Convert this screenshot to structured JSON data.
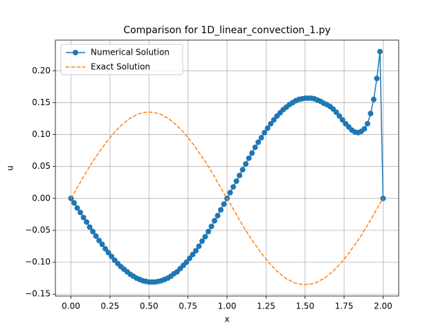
{
  "chart_data": {
    "type": "line",
    "title": "Comparison for 1D_linear_convection_1.py",
    "x_label": "x",
    "y_label": "u",
    "x": [
      0,
      0.02,
      0.04,
      0.06,
      0.08,
      0.1,
      0.12,
      0.14,
      0.16,
      0.18,
      0.2,
      0.22,
      0.24,
      0.26,
      0.28,
      0.3,
      0.32,
      0.34,
      0.36,
      0.38,
      0.4,
      0.42,
      0.44,
      0.46,
      0.48,
      0.5,
      0.52,
      0.54,
      0.56,
      0.58,
      0.6,
      0.62,
      0.64,
      0.66,
      0.68,
      0.7,
      0.72,
      0.74,
      0.76,
      0.78,
      0.8,
      0.82,
      0.84,
      0.86,
      0.88,
      0.9,
      0.92,
      0.94,
      0.96,
      0.98,
      1,
      1.02,
      1.04,
      1.06,
      1.08,
      1.1,
      1.12,
      1.14,
      1.16,
      1.18,
      1.2,
      1.22,
      1.24,
      1.26,
      1.28,
      1.3,
      1.32,
      1.34,
      1.36,
      1.38,
      1.4,
      1.42,
      1.44,
      1.46,
      1.48,
      1.5,
      1.52,
      1.54,
      1.56,
      1.58,
      1.6,
      1.62,
      1.64,
      1.66,
      1.68,
      1.7,
      1.72,
      1.74,
      1.76,
      1.78,
      1.8,
      1.82,
      1.84,
      1.86,
      1.88,
      1.9,
      1.92,
      1.94,
      1.96,
      1.98,
      2
    ],
    "series": [
      {
        "name": "Numerical Solution",
        "color": "#1f77b4",
        "linestyle": "solid",
        "marker": "circle",
        "values": [
          0,
          -0.007,
          -0.015,
          -0.022,
          -0.03,
          -0.037,
          -0.045,
          -0.052,
          -0.059,
          -0.066,
          -0.072,
          -0.079,
          -0.085,
          -0.091,
          -0.097,
          -0.102,
          -0.107,
          -0.111,
          -0.115,
          -0.119,
          -0.122,
          -0.125,
          -0.127,
          -0.129,
          -0.13,
          -0.131,
          -0.131,
          -0.131,
          -0.13,
          -0.129,
          -0.127,
          -0.125,
          -0.122,
          -0.118,
          -0.115,
          -0.11,
          -0.105,
          -0.1,
          -0.094,
          -0.088,
          -0.082,
          -0.075,
          -0.067,
          -0.06,
          -0.052,
          -0.044,
          -0.035,
          -0.027,
          -0.018,
          -0.009,
          0,
          0.009,
          0.018,
          0.027,
          0.036,
          0.045,
          0.054,
          0.063,
          0.071,
          0.08,
          0.088,
          0.095,
          0.103,
          0.11,
          0.117,
          0.123,
          0.129,
          0.134,
          0.139,
          0.143,
          0.147,
          0.15,
          0.153,
          0.155,
          0.156,
          0.157,
          0.157,
          0.157,
          0.156,
          0.154,
          0.152,
          0.149,
          0.147,
          0.144,
          0.14,
          0.135,
          0.129,
          0.123,
          0.117,
          0.112,
          0.107,
          0.104,
          0.103,
          0.105,
          0.109,
          0.117,
          0.133,
          0.155,
          0.188,
          0.23,
          0
        ]
      },
      {
        "name": "Exact Solution",
        "color": "#ff7f0e",
        "linestyle": "dashed",
        "marker": "none",
        "values": [
          0,
          0.008,
          0.017,
          0.025,
          0.034,
          0.042,
          0.05,
          0.058,
          0.065,
          0.072,
          0.079,
          0.086,
          0.092,
          0.098,
          0.104,
          0.109,
          0.114,
          0.118,
          0.122,
          0.126,
          0.128,
          0.131,
          0.133,
          0.134,
          0.135,
          0.135,
          0.135,
          0.134,
          0.133,
          0.131,
          0.128,
          0.126,
          0.122,
          0.118,
          0.114,
          0.109,
          0.104,
          0.098,
          0.092,
          0.086,
          0.079,
          0.072,
          0.065,
          0.058,
          0.05,
          0.042,
          0.034,
          0.025,
          0.017,
          0.008,
          0,
          -0.008,
          -0.017,
          -0.025,
          -0.034,
          -0.042,
          -0.05,
          -0.058,
          -0.065,
          -0.072,
          -0.079,
          -0.086,
          -0.092,
          -0.098,
          -0.104,
          -0.109,
          -0.114,
          -0.118,
          -0.122,
          -0.126,
          -0.128,
          -0.131,
          -0.133,
          -0.134,
          -0.135,
          -0.135,
          -0.135,
          -0.134,
          -0.133,
          -0.131,
          -0.128,
          -0.126,
          -0.122,
          -0.118,
          -0.114,
          -0.109,
          -0.104,
          -0.098,
          -0.092,
          -0.086,
          -0.079,
          -0.072,
          -0.065,
          -0.058,
          -0.05,
          -0.042,
          -0.034,
          -0.025,
          -0.017,
          -0.008,
          0
        ]
      }
    ],
    "xlim": [
      -0.1,
      2.1
    ],
    "xticks": [
      {
        "value": 0,
        "label": "0.00"
      },
      {
        "value": 0.25,
        "label": "0.25"
      },
      {
        "value": 0.5,
        "label": "0.50"
      },
      {
        "value": 0.75,
        "label": "0.75"
      },
      {
        "value": 1,
        "label": "1.00"
      },
      {
        "value": 1.25,
        "label": "1.25"
      },
      {
        "value": 1.5,
        "label": "1.50"
      },
      {
        "value": 1.75,
        "label": "1.75"
      },
      {
        "value": 2,
        "label": "2.00"
      }
    ],
    "ylim": [
      -0.153,
      0.248
    ],
    "yticks": [
      {
        "value": -0.15,
        "label": "−0.15"
      },
      {
        "value": -0.1,
        "label": "−0.10"
      },
      {
        "value": -0.05,
        "label": "−0.05"
      },
      {
        "value": 0,
        "label": "0.00"
      },
      {
        "value": 0.05,
        "label": "0.05"
      },
      {
        "value": 0.1,
        "label": "0.10"
      },
      {
        "value": 0.15,
        "label": "0.15"
      },
      {
        "value": 0.2,
        "label": "0.20"
      }
    ],
    "grid": true,
    "legend": "upper-left"
  }
}
